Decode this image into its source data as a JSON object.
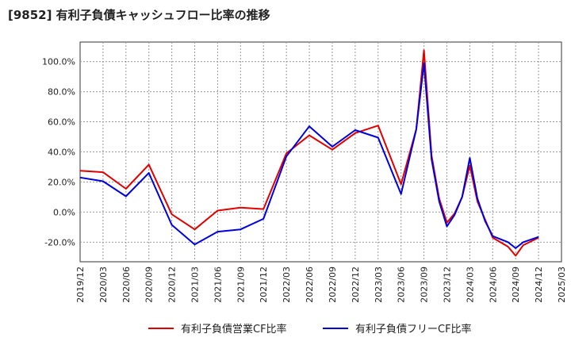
{
  "chart_data": {
    "type": "line",
    "title": "[9852]  有利子負債キャッシュフロー比率の推移",
    "x": [
      "2019/12",
      "2020/03",
      "2020/06",
      "2020/09",
      "2020/12",
      "2021/03",
      "2021/06",
      "2021/09",
      "2021/12",
      "2022/03",
      "2022/06",
      "2022/09",
      "2022/12",
      "2023/03",
      "2023/06",
      "2023/09",
      "2023/12",
      "2024/03",
      "2024/06",
      "2024/09",
      "2024/12",
      "2025/03"
    ],
    "x_labels": [
      "2019/12",
      "2020/03",
      "2020/06",
      "2020/09",
      "2020/12",
      "2021/03",
      "2021/06",
      "2021/09",
      "2021/12",
      "2022/03",
      "2022/06",
      "2022/09",
      "2022/12",
      "2023/03",
      "2023/06",
      "2023/09",
      "2023/12",
      "2024/03",
      "2024/06",
      "2024/09",
      "2024/12",
      "2025/03"
    ],
    "y_ticks": [
      -20,
      0,
      20,
      40,
      60,
      80,
      100
    ],
    "y_tick_labels": [
      "-20.0%",
      "0.0%",
      "20.0%",
      "40.0%",
      "60.0%",
      "80.0%",
      "100.0%"
    ],
    "ylim": [
      -33,
      113
    ],
    "grid": true,
    "legend_position": "bottom",
    "series": [
      {
        "name": "有利子負債営業CF比率",
        "color": "#e00000",
        "values": [
          [
            "2019/12",
            27.5
          ],
          [
            "2020/03",
            26.5
          ],
          [
            "2020/06",
            15.5
          ],
          [
            "2020/09",
            31.5
          ],
          [
            "2020/12",
            -1.5
          ],
          [
            "2021/03",
            -11.5
          ],
          [
            "2021/06",
            1.0
          ],
          [
            "2021/09",
            3.0
          ],
          [
            "2021/12",
            2.0
          ],
          [
            "2022/03",
            39.0
          ],
          [
            "2022/06",
            51.0
          ],
          [
            "2022/09",
            41.5
          ],
          [
            "2022/12",
            52.5
          ],
          [
            "2023/03",
            57.5
          ],
          [
            "2023/06",
            18.5
          ],
          [
            "2023/08",
            55.0
          ],
          [
            "2023/09",
            107.5
          ],
          [
            "2023/10",
            37.5
          ],
          [
            "2023/11",
            9.0
          ],
          [
            "2023/12",
            -7.0
          ],
          [
            "2024/01",
            -1.0
          ],
          [
            "2024/02",
            10.0
          ],
          [
            "2024/03",
            31.0
          ],
          [
            "2024/04",
            7.0
          ],
          [
            "2024/05",
            -5.0
          ],
          [
            "2024/06",
            -17.0
          ],
          [
            "2024/08",
            -23.0
          ],
          [
            "2024/09",
            -29.0
          ],
          [
            "2024/10",
            -22.0
          ],
          [
            "2024/12",
            -17.0
          ]
        ]
      },
      {
        "name": "有利子負債フリーCF比率",
        "color": "#0000dd",
        "values": [
          [
            "2019/12",
            23.0
          ],
          [
            "2020/03",
            20.5
          ],
          [
            "2020/06",
            10.5
          ],
          [
            "2020/09",
            26.0
          ],
          [
            "2020/12",
            -8.5
          ],
          [
            "2021/03",
            -21.5
          ],
          [
            "2021/06",
            -13.0
          ],
          [
            "2021/09",
            -11.5
          ],
          [
            "2021/12",
            -4.5
          ],
          [
            "2022/03",
            37.0
          ],
          [
            "2022/06",
            57.0
          ],
          [
            "2022/09",
            43.5
          ],
          [
            "2022/12",
            54.5
          ],
          [
            "2023/03",
            49.5
          ],
          [
            "2023/06",
            12.0
          ],
          [
            "2023/08",
            55.0
          ],
          [
            "2023/09",
            99.0
          ],
          [
            "2023/10",
            35.0
          ],
          [
            "2023/11",
            7.0
          ],
          [
            "2023/12",
            -9.5
          ],
          [
            "2024/01",
            -2.0
          ],
          [
            "2024/02",
            10.0
          ],
          [
            "2024/03",
            36.0
          ],
          [
            "2024/04",
            9.0
          ],
          [
            "2024/05",
            -6.0
          ],
          [
            "2024/06",
            -16.0
          ],
          [
            "2024/08",
            -20.0
          ],
          [
            "2024/09",
            -24.0
          ],
          [
            "2024/10",
            -20.0
          ],
          [
            "2024/12",
            -16.5
          ]
        ]
      }
    ]
  }
}
